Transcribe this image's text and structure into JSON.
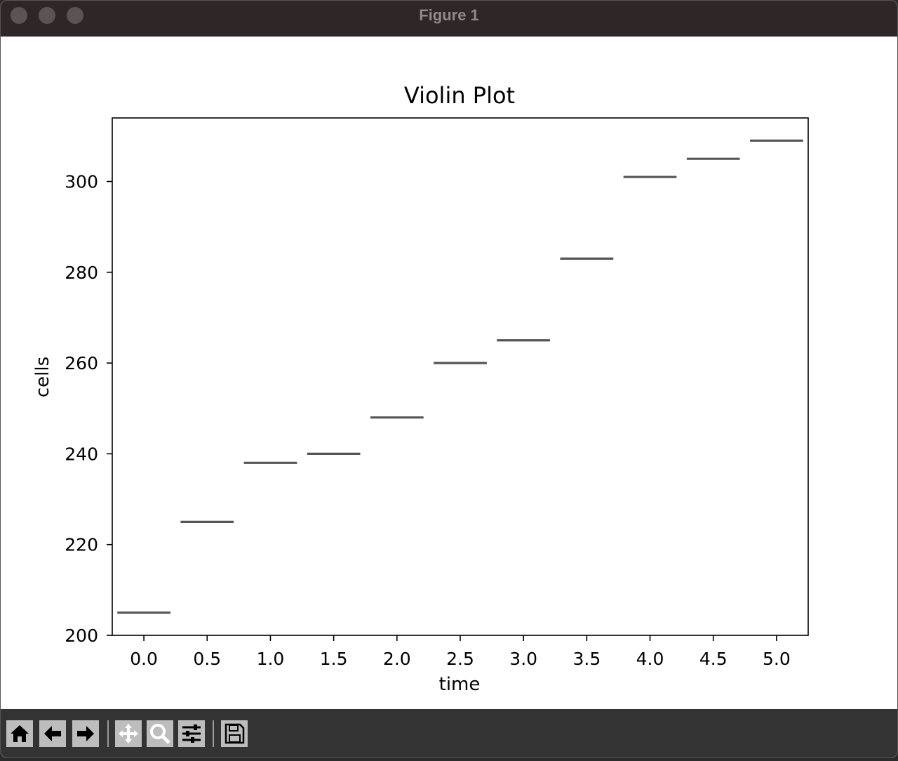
{
  "window": {
    "title": "Figure 1"
  },
  "toolbar": {
    "buttons": [
      {
        "name": "home",
        "icon": "home-icon"
      },
      {
        "name": "back",
        "icon": "arrow-left-icon"
      },
      {
        "name": "forward",
        "icon": "arrow-right-icon"
      },
      {
        "name": "pan",
        "icon": "move-icon"
      },
      {
        "name": "zoom",
        "icon": "magnifier-icon"
      },
      {
        "name": "configure",
        "icon": "sliders-icon"
      },
      {
        "name": "save",
        "icon": "floppy-disk-icon"
      }
    ]
  },
  "chart_data": {
    "type": "violin",
    "title": "Violin Plot",
    "xlabel": "time",
    "ylabel": "cells",
    "x": [
      0.0,
      0.5,
      1.0,
      1.5,
      2.0,
      2.5,
      3.0,
      3.5,
      4.0,
      4.5,
      5.0
    ],
    "values": [
      205,
      225,
      238,
      240,
      248,
      260,
      265,
      283,
      301,
      305,
      309
    ],
    "xticks": [
      "0.0",
      "0.5",
      "1.0",
      "1.5",
      "2.0",
      "2.5",
      "3.0",
      "3.5",
      "4.0",
      "4.5",
      "5.0"
    ],
    "yticks": [
      200,
      220,
      240,
      260,
      280,
      300
    ],
    "xlim": [
      -0.25,
      5.25
    ],
    "ylim": [
      200,
      314
    ],
    "grid": false,
    "color": "#555555"
  }
}
